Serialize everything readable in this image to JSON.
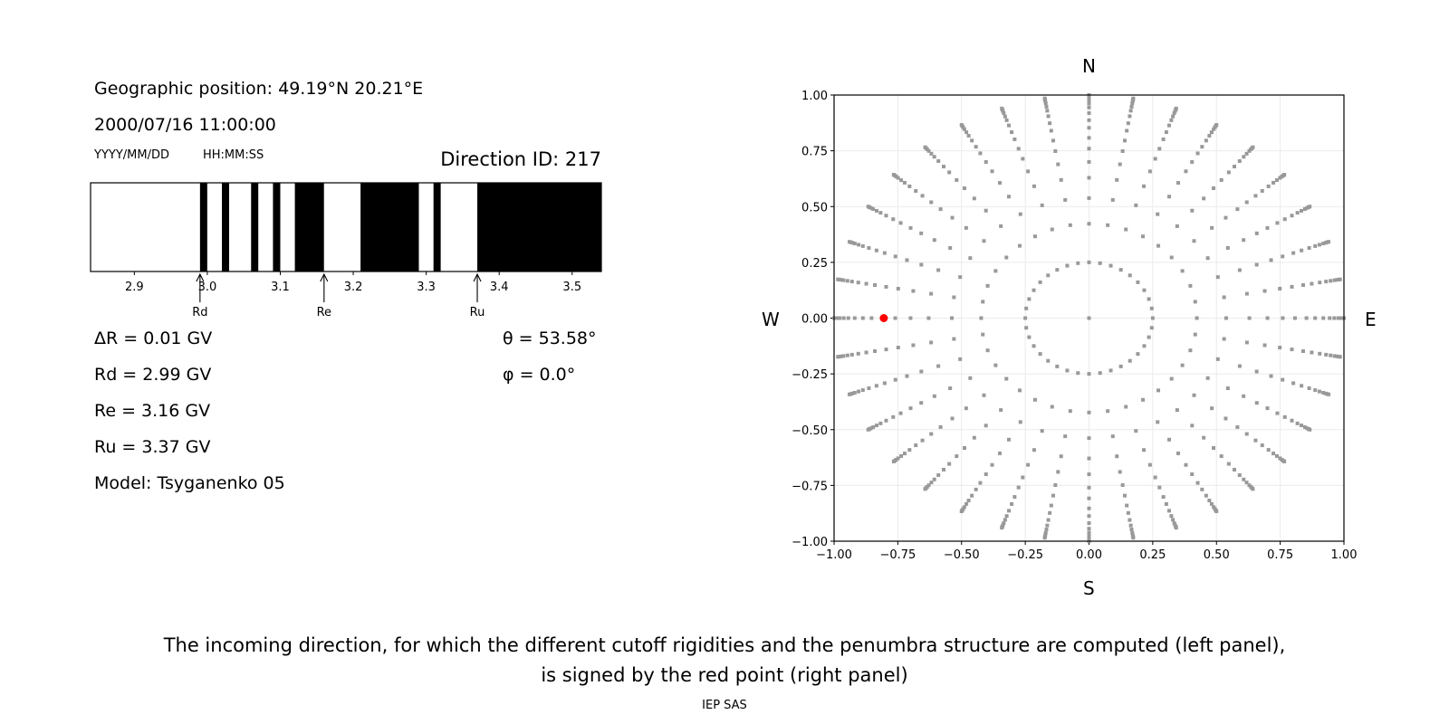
{
  "left_panel": {
    "geo_position": "Geographic position: 49.19°N 20.21°E",
    "datetime": "2000/07/16 11:00:00",
    "date_format": "YYYY/MM/DD",
    "time_format": "HH:MM:SS",
    "direction_id": "Direction ID: 217",
    "delta_r": "ΔR = 0.01 GV",
    "rd": "Rd = 2.99 GV",
    "re": "Re = 3.16 GV",
    "ru": "Ru = 3.37 GV",
    "model": "Model: Tsyganenko 05",
    "theta": "θ = 53.58°",
    "phi": "φ = 0.0°"
  },
  "chart_data": [
    {
      "type": "bar",
      "subtype": "penumbra-strip",
      "xlim": [
        2.84,
        3.54
      ],
      "xticks": [
        "2.9",
        "3.0",
        "3.1",
        "3.2",
        "3.3",
        "3.4",
        "3.5"
      ],
      "segments": [
        {
          "from": 2.84,
          "to": 2.99,
          "color": "white"
        },
        {
          "from": 2.99,
          "to": 3.0,
          "color": "black"
        },
        {
          "from": 3.0,
          "to": 3.02,
          "color": "white"
        },
        {
          "from": 3.02,
          "to": 3.03,
          "color": "black"
        },
        {
          "from": 3.03,
          "to": 3.06,
          "color": "white"
        },
        {
          "from": 3.06,
          "to": 3.07,
          "color": "black"
        },
        {
          "from": 3.07,
          "to": 3.09,
          "color": "white"
        },
        {
          "from": 3.09,
          "to": 3.1,
          "color": "black"
        },
        {
          "from": 3.1,
          "to": 3.12,
          "color": "white"
        },
        {
          "from": 3.12,
          "to": 3.16,
          "color": "black"
        },
        {
          "from": 3.16,
          "to": 3.21,
          "color": "white"
        },
        {
          "from": 3.21,
          "to": 3.29,
          "color": "black"
        },
        {
          "from": 3.29,
          "to": 3.31,
          "color": "white"
        },
        {
          "from": 3.31,
          "to": 3.32,
          "color": "black"
        },
        {
          "from": 3.32,
          "to": 3.37,
          "color": "white"
        },
        {
          "from": 3.37,
          "to": 3.54,
          "color": "black"
        }
      ],
      "markers": [
        {
          "label": "Rd",
          "value": 2.99
        },
        {
          "label": "Re",
          "value": 3.16
        },
        {
          "label": "Ru",
          "value": 3.37
        }
      ]
    },
    {
      "type": "scatter",
      "xlim": [
        -1.0,
        1.0
      ],
      "ylim": [
        -1.0,
        1.0
      ],
      "xticks": [
        "−1.00",
        "−0.75",
        "−0.50",
        "−0.25",
        "0.00",
        "0.25",
        "0.50",
        "0.75",
        "1.00"
      ],
      "yticks": [
        "−1.00",
        "−0.75",
        "−0.50",
        "−0.25",
        "0.00",
        "0.25",
        "0.50",
        "0.75",
        "1.00"
      ],
      "grid": true,
      "compass": {
        "north": "N",
        "south": "S",
        "west": "W",
        "east": "E"
      },
      "grid_points": {
        "azimuth_step_deg": 10,
        "radii": [
          0.25,
          0.423,
          0.538,
          0.629,
          0.7,
          0.76,
          0.808,
          0.853,
          0.887,
          0.919,
          0.944,
          0.962,
          0.978,
          0.988,
          0.995,
          1.0
        ],
        "center_point": true,
        "color": "#999999"
      },
      "selected_point": {
        "x": -0.805,
        "y": 0.0,
        "theta_deg": 53.58,
        "phi_deg": 0.0,
        "color": "#ff0000"
      }
    }
  ],
  "caption": {
    "line1": "The incoming direction, for which the different cutoff rigidities and the penumbra structure are computed (left panel),",
    "line2": "is signed by the red point (right panel)",
    "credit": "IEP SAS"
  }
}
